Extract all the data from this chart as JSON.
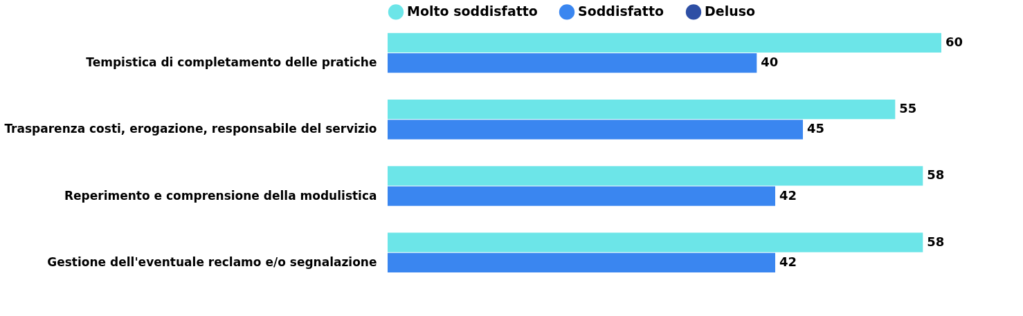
{
  "chart_data": {
    "type": "bar",
    "orientation": "horizontal",
    "categories": [
      "Tempistica di completamento delle pratiche",
      "Trasparenza costi, erogazione, responsabile del servizio",
      "Reperimento e comprensione della modulistica",
      "Gestione dell'eventuale reclamo e/o segnalazione"
    ],
    "series": [
      {
        "name": "Molto soddisfatto",
        "color": "#6ce5e8",
        "values": [
          60,
          55,
          58,
          58
        ]
      },
      {
        "name": "Soddisfatto",
        "color": "#3a86f0",
        "values": [
          40,
          45,
          42,
          42
        ]
      },
      {
        "name": "Deluso",
        "color": "#2e4fa5",
        "values": [
          null,
          null,
          null,
          null
        ]
      }
    ],
    "data_labels": true,
    "legend": "top",
    "grid": false
  }
}
